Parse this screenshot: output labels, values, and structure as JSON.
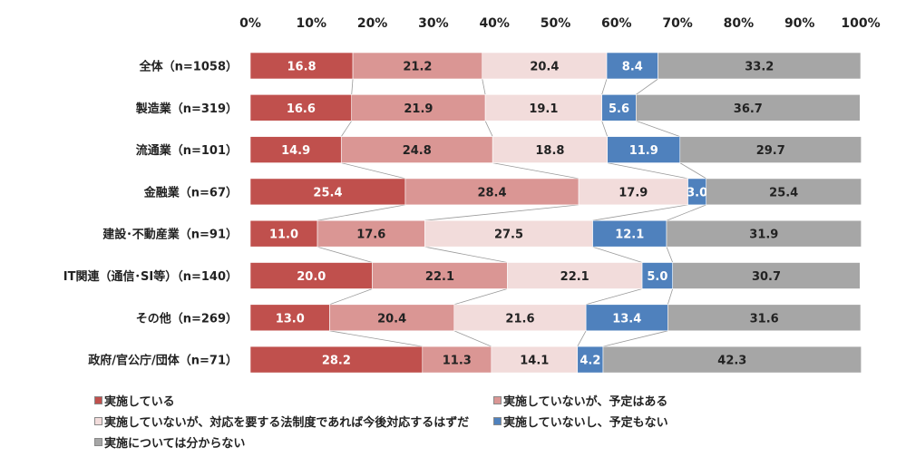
{
  "chart_data": {
    "type": "bar",
    "orientation": "horizontal",
    "stacked": true,
    "title": "",
    "xlabel": "",
    "ylabel": "",
    "xlim": [
      0,
      100
    ],
    "x_ticks": [
      "0%",
      "10%",
      "20%",
      "30%",
      "40%",
      "50%",
      "60%",
      "70%",
      "80%",
      "90%",
      "100%"
    ],
    "categories": [
      "全体（n=1058）",
      "製造業（n=319）",
      "流通業（n=101）",
      "金融業（n=67）",
      "建設･不動産業（n=91）",
      "IT関連（通信･SI等）（n=140）",
      "その他（n=269）",
      "政府/官公庁/団体（n=71）"
    ],
    "series": [
      {
        "name": "実施している",
        "color": "#c0504d",
        "text_color": "#ffffff",
        "values": [
          16.8,
          16.6,
          14.9,
          25.4,
          11.0,
          20.0,
          13.0,
          28.2
        ]
      },
      {
        "name": "実施していないが、予定はある",
        "color": "#da9694",
        "text_color": "#222222",
        "values": [
          21.2,
          21.9,
          24.8,
          28.4,
          17.6,
          22.1,
          20.4,
          11.3
        ]
      },
      {
        "name": "実施していないが、対応を要する法制度であれば今後対応するはずだ",
        "color": "#f2dcdb",
        "text_color": "#222222",
        "values": [
          20.4,
          19.1,
          18.8,
          17.9,
          27.5,
          22.1,
          21.6,
          14.1
        ]
      },
      {
        "name": "実施していないし、予定もない",
        "color": "#4f81bd",
        "text_color": "#ffffff",
        "values": [
          8.4,
          5.6,
          11.9,
          3.0,
          12.1,
          5.0,
          13.4,
          4.2
        ]
      },
      {
        "name": "実施については分からない",
        "color": "#a6a6a6",
        "text_color": "#222222",
        "values": [
          33.2,
          36.7,
          29.7,
          25.4,
          31.9,
          30.7,
          31.6,
          42.3
        ]
      }
    ],
    "legend_position": "bottom",
    "grid": false
  }
}
